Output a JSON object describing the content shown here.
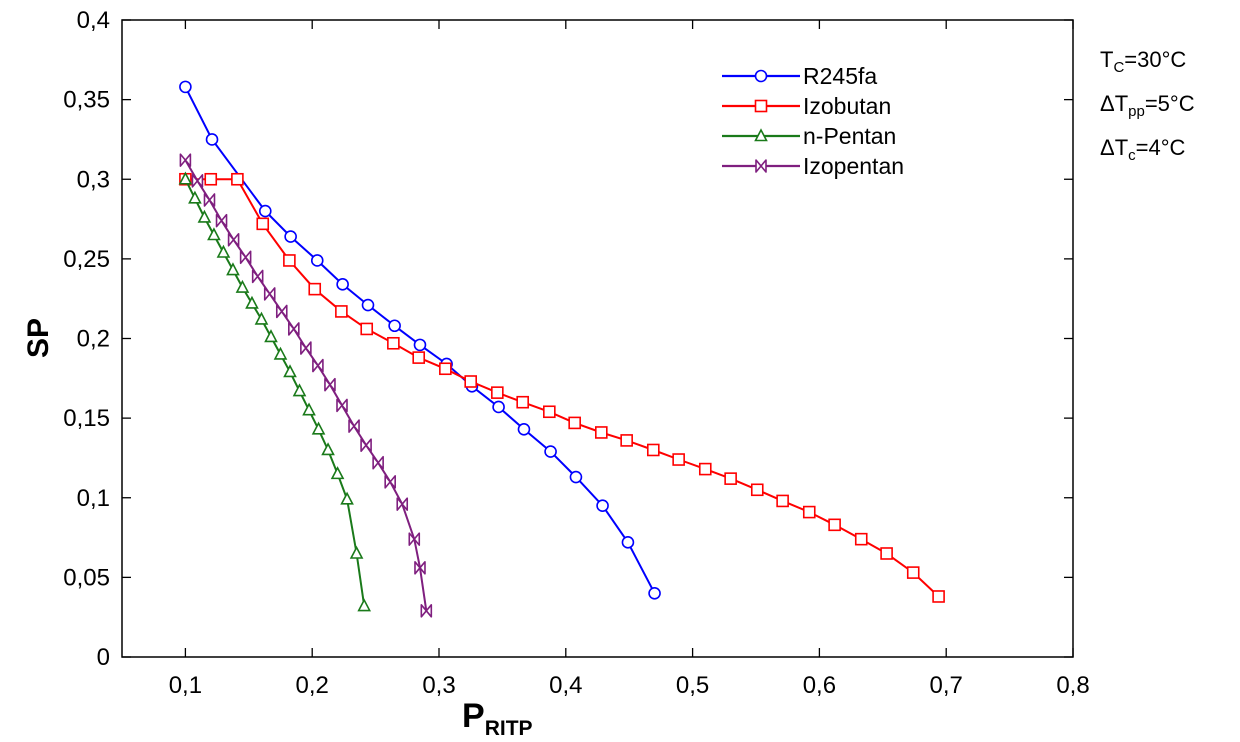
{
  "chart_data": {
    "type": "line",
    "xlabel": "P",
    "xlabel_sub": "RITP",
    "ylabel": "SP",
    "xlim": [
      0.05,
      0.8
    ],
    "ylim": [
      0,
      0.4
    ],
    "x_ticks": [
      0.1,
      0.2,
      0.3,
      0.4,
      0.5,
      0.6,
      0.7,
      0.8
    ],
    "x_tick_labels": [
      "0,1",
      "0,2",
      "0,3",
      "0,4",
      "0,5",
      "0,6",
      "0,7",
      "0,8"
    ],
    "y_ticks": [
      0,
      0.05,
      0.1,
      0.15,
      0.2,
      0.25,
      0.3,
      0.35,
      0.4
    ],
    "y_tick_labels": [
      "0",
      "0,05",
      "0,1",
      "0,15",
      "0,2",
      "0,25",
      "0,3",
      "0,35",
      "0,4"
    ],
    "grid": false,
    "legend_position": "top-right",
    "series": [
      {
        "name": "R245fa",
        "color": "#0000ff",
        "marker": "circle",
        "x": [
          0.1,
          0.121,
          0.163,
          0.183,
          0.204,
          0.224,
          0.244,
          0.265,
          0.285,
          0.306,
          0.326,
          0.347,
          0.367,
          0.388,
          0.408,
          0.429,
          0.449,
          0.47
        ],
        "y": [
          0.358,
          0.325,
          0.28,
          0.264,
          0.249,
          0.234,
          0.221,
          0.208,
          0.196,
          0.184,
          0.17,
          0.157,
          0.143,
          0.129,
          0.113,
          0.095,
          0.072,
          0.04
        ]
      },
      {
        "name": "Izobutan",
        "color": "#ff0000",
        "marker": "square",
        "x": [
          0.1,
          0.12,
          0.141,
          0.161,
          0.182,
          0.202,
          0.223,
          0.243,
          0.264,
          0.284,
          0.305,
          0.325,
          0.346,
          0.366,
          0.387,
          0.407,
          0.428,
          0.448,
          0.469,
          0.489,
          0.51,
          0.53,
          0.551,
          0.571,
          0.592,
          0.612,
          0.633,
          0.653,
          0.674,
          0.694
        ],
        "y": [
          0.3,
          0.3,
          0.3,
          0.272,
          0.249,
          0.231,
          0.217,
          0.206,
          0.197,
          0.188,
          0.181,
          0.173,
          0.166,
          0.16,
          0.154,
          0.147,
          0.141,
          0.136,
          0.13,
          0.124,
          0.118,
          0.112,
          0.105,
          0.098,
          0.091,
          0.083,
          0.074,
          0.065,
          0.053,
          0.038
        ]
      },
      {
        "name": "n-Pentan",
        "color": "#1a7a1a",
        "marker": "triangle",
        "x": [
          0.1,
          0.1075,
          0.115,
          0.1225,
          0.13,
          0.1375,
          0.145,
          0.1525,
          0.16,
          0.1675,
          0.175,
          0.1825,
          0.19,
          0.1975,
          0.205,
          0.2125,
          0.22,
          0.2275,
          0.235,
          0.241
        ],
        "y": [
          0.3,
          0.288,
          0.276,
          0.265,
          0.254,
          0.243,
          0.232,
          0.222,
          0.212,
          0.201,
          0.19,
          0.179,
          0.167,
          0.155,
          0.143,
          0.13,
          0.115,
          0.099,
          0.065,
          0.032
        ]
      },
      {
        "name": "Izopentan",
        "color": "#7f1f7f",
        "marker": "bowtie",
        "x": [
          0.1,
          0.1095,
          0.119,
          0.1285,
          0.138,
          0.1475,
          0.157,
          0.1665,
          0.176,
          0.1855,
          0.195,
          0.2045,
          0.214,
          0.2235,
          0.233,
          0.2425,
          0.252,
          0.2615,
          0.271,
          0.2805,
          0.285,
          0.29
        ],
        "y": [
          0.312,
          0.299,
          0.287,
          0.274,
          0.262,
          0.251,
          0.239,
          0.228,
          0.217,
          0.206,
          0.194,
          0.183,
          0.171,
          0.158,
          0.145,
          0.133,
          0.122,
          0.11,
          0.096,
          0.074,
          0.056,
          0.029
        ]
      }
    ]
  },
  "params": [
    {
      "main": "T",
      "sub": "C",
      "rest": "=30°C"
    },
    {
      "main": "ΔT",
      "sub": "pp",
      "rest": "=5°C"
    },
    {
      "main": "ΔT",
      "sub": "c",
      "rest": "=4°C"
    }
  ]
}
